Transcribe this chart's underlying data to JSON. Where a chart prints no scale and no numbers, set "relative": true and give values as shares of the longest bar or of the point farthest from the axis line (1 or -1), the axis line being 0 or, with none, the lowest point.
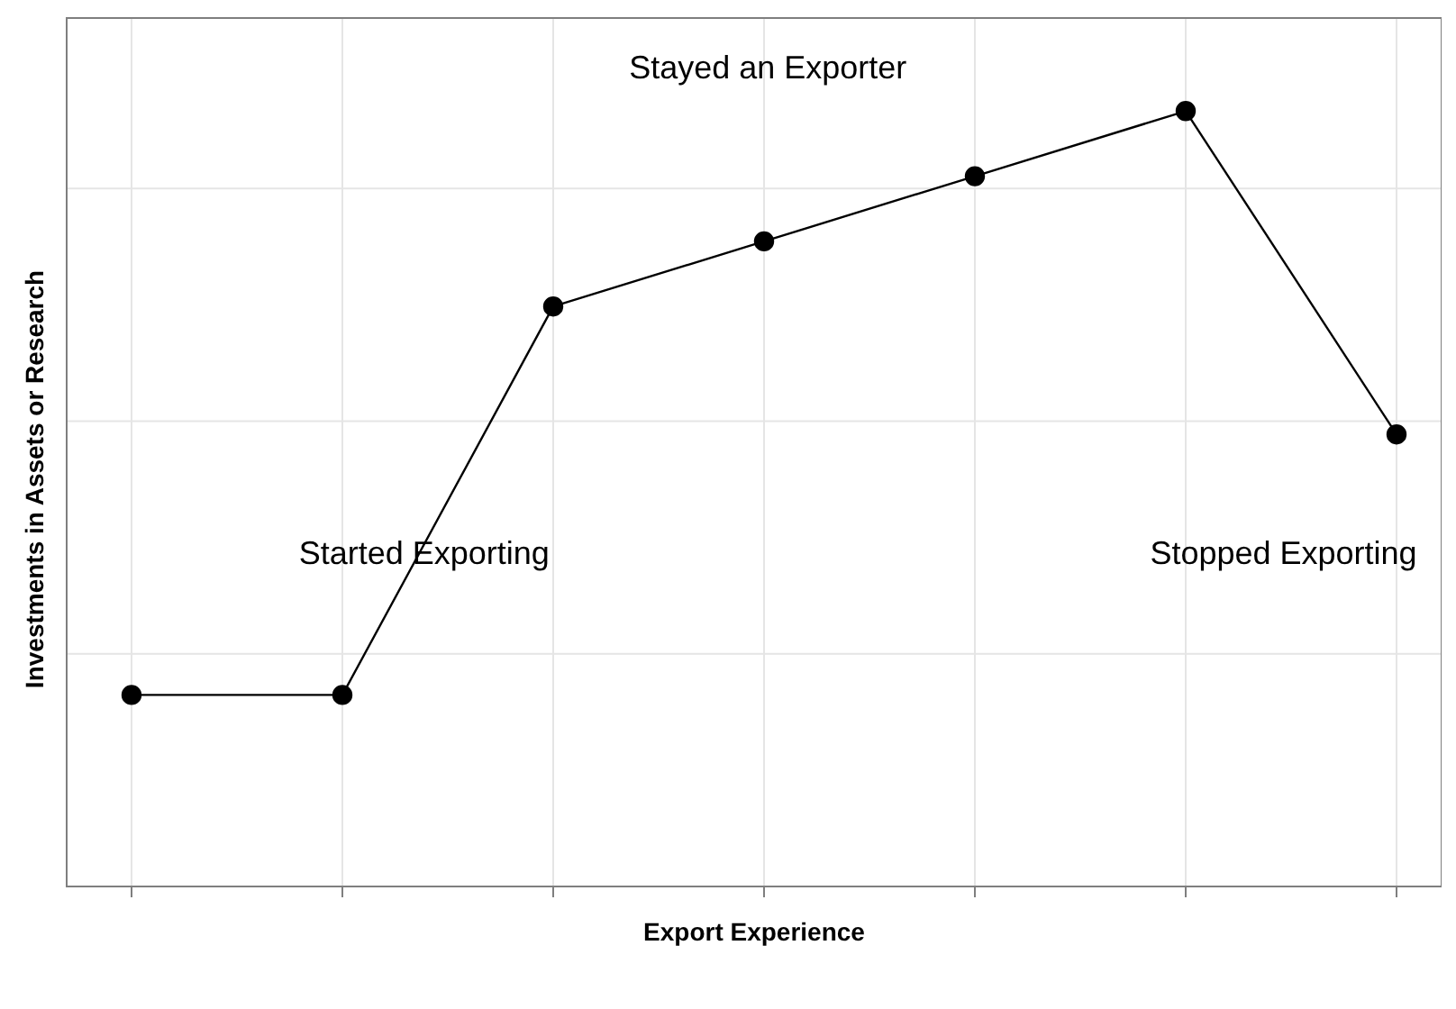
{
  "chart_data": {
    "type": "line",
    "relative": true,
    "xlabel": "Export Experience",
    "ylabel": "Investments in Assets or Research",
    "categories": [
      null,
      null,
      null,
      null,
      null,
      null,
      null
    ],
    "series": [
      {
        "color": "#000000",
        "values": [
          0.247,
          0.247,
          0.748,
          0.832,
          0.916,
          1,
          0.583
        ]
      }
    ],
    "marker": "circle",
    "line_style": "solid",
    "grid": true,
    "legend": false,
    "annotations": [
      "Started Exporting",
      "Stayed an Exporter",
      "Stopped Exporting"
    ]
  }
}
